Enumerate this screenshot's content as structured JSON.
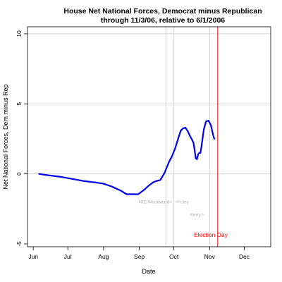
{
  "chart_data": {
    "type": "line",
    "title_line1": "House Net National Forces, Democrat minus Republican",
    "title_line2": "through 11/3/06, relative to 6/1/2006",
    "xlabel": "Date",
    "ylabel": "Net National Forces, Dem minus Rep",
    "x_unit": "2006 day of year",
    "xlim": [
      147,
      358
    ],
    "ylim": [
      -5.2,
      10.5
    ],
    "x_ticks": [
      {
        "label": "Jun",
        "x": 152
      },
      {
        "label": "Jul",
        "x": 182
      },
      {
        "label": "Aug",
        "x": 213
      },
      {
        "label": "Sep",
        "x": 244
      },
      {
        "label": "Oct",
        "x": 274
      },
      {
        "label": "Nov",
        "x": 305
      },
      {
        "label": "Dec",
        "x": 335
      }
    ],
    "y_ticks": [
      {
        "label": "-5",
        "y": -5
      },
      {
        "label": "0",
        "y": 0
      },
      {
        "label": "5",
        "y": 5
      },
      {
        "label": "10",
        "y": 10
      }
    ],
    "grid": {
      "horizontal": [
        0,
        5,
        10
      ]
    },
    "vlines": [
      {
        "x": 267,
        "color": "#d3d3d3"
      },
      {
        "x": 274,
        "color": "#d3d3d3"
      },
      {
        "x": 305,
        "color": "#d3d3d3"
      },
      {
        "x": 312,
        "color": "#ff0000"
      }
    ],
    "annotations": [
      {
        "text": "NIE/Woodward>",
        "x": 258,
        "y": -2.1,
        "color": "#b5b5b5"
      },
      {
        "text": "<Foley",
        "x": 281,
        "y": -2.1,
        "color": "#b5b5b5"
      },
      {
        "text": "Kerry>",
        "x": 294,
        "y": -3.0,
        "color": "#b5b5b5"
      },
      {
        "text": "Election Day",
        "x": 306,
        "y": -4.5,
        "color": "#ff0000"
      }
    ],
    "series": [
      {
        "color": "#0000ee",
        "x": [
          157,
          165,
          175,
          185,
          195,
          205,
          213,
          220,
          228,
          233,
          238,
          243,
          248,
          252,
          256,
          259,
          262,
          264,
          266,
          268,
          270,
          272,
          275,
          278,
          280,
          282,
          284,
          286,
          288,
          290,
          291,
          292,
          293,
          294,
          295,
          296,
          297,
          298,
          299,
          300,
          302,
          304,
          306,
          307,
          308,
          309
        ],
        "y": [
          0.0,
          -0.1,
          -0.2,
          -0.35,
          -0.5,
          -0.6,
          -0.7,
          -0.9,
          -1.2,
          -1.45,
          -1.45,
          -1.45,
          -1.15,
          -0.85,
          -0.6,
          -0.5,
          -0.45,
          -0.2,
          0.1,
          0.5,
          0.9,
          1.2,
          1.8,
          2.6,
          3.1,
          3.25,
          3.3,
          3.05,
          2.7,
          2.4,
          2.2,
          1.7,
          1.1,
          1.05,
          1.4,
          1.5,
          1.5,
          2.0,
          2.6,
          3.2,
          3.75,
          3.8,
          3.5,
          3.15,
          2.8,
          2.5
        ]
      }
    ]
  }
}
